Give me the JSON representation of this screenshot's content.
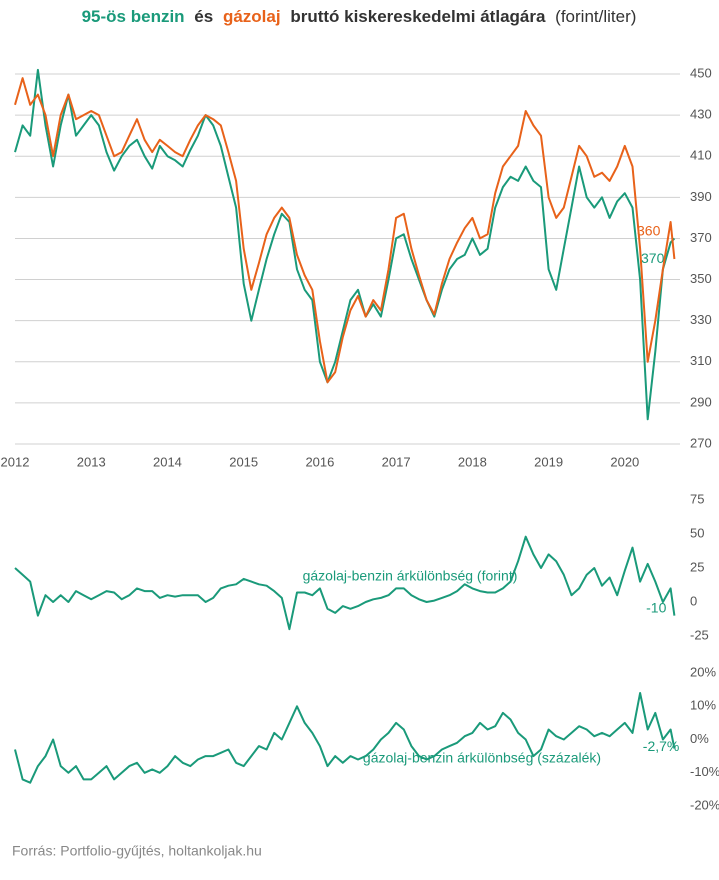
{
  "chart_data": [
    {
      "type": "line",
      "x": [
        2012.0,
        2012.1,
        2012.2,
        2012.3,
        2012.4,
        2012.5,
        2012.6,
        2012.7,
        2012.8,
        2012.9,
        2013.0,
        2013.1,
        2013.2,
        2013.3,
        2013.4,
        2013.5,
        2013.6,
        2013.7,
        2013.8,
        2013.9,
        2014.0,
        2014.1,
        2014.2,
        2014.3,
        2014.4,
        2014.5,
        2014.6,
        2014.7,
        2014.8,
        2014.9,
        2015.0,
        2015.1,
        2015.2,
        2015.3,
        2015.4,
        2015.5,
        2015.6,
        2015.7,
        2015.8,
        2015.9,
        2016.0,
        2016.1,
        2016.2,
        2016.3,
        2016.4,
        2016.5,
        2016.6,
        2016.7,
        2016.8,
        2016.9,
        2017.0,
        2017.1,
        2017.2,
        2017.3,
        2017.4,
        2017.5,
        2017.6,
        2017.7,
        2017.8,
        2017.9,
        2018.0,
        2018.1,
        2018.2,
        2018.3,
        2018.4,
        2018.5,
        2018.6,
        2018.7,
        2018.8,
        2018.9,
        2019.0,
        2019.1,
        2019.2,
        2019.3,
        2019.4,
        2019.5,
        2019.6,
        2019.7,
        2019.8,
        2019.9,
        2020.0,
        2020.1,
        2020.2,
        2020.3,
        2020.4,
        2020.5,
        2020.6,
        2020.65
      ],
      "series": [
        {
          "name": "95-ös benzin",
          "color": "#1a9a7a",
          "end_label": "370",
          "values": [
            412,
            425,
            420,
            452,
            425,
            405,
            425,
            440,
            420,
            425,
            430,
            425,
            412,
            403,
            410,
            415,
            418,
            410,
            404,
            415,
            410,
            408,
            405,
            413,
            420,
            430,
            425,
            415,
            400,
            385,
            348,
            330,
            345,
            360,
            372,
            382,
            378,
            355,
            345,
            340,
            310,
            300,
            310,
            325,
            340,
            345,
            332,
            338,
            332,
            350,
            370,
            372,
            360,
            350,
            340,
            332,
            345,
            355,
            360,
            362,
            370,
            362,
            365,
            385,
            395,
            400,
            398,
            405,
            398,
            395,
            355,
            345,
            365,
            385,
            405,
            390,
            385,
            390,
            380,
            388,
            392,
            385,
            350,
            282,
            315,
            355,
            368,
            370
          ]
        },
        {
          "name": "gázolaj",
          "color": "#e8621a",
          "end_label": "360",
          "values": [
            435,
            448,
            435,
            440,
            430,
            410,
            430,
            440,
            428,
            430,
            432,
            430,
            420,
            410,
            412,
            420,
            428,
            418,
            412,
            418,
            415,
            412,
            410,
            418,
            425,
            430,
            428,
            425,
            412,
            398,
            365,
            345,
            358,
            372,
            380,
            385,
            380,
            362,
            352,
            345,
            320,
            300,
            305,
            322,
            335,
            342,
            332,
            340,
            335,
            355,
            380,
            382,
            365,
            352,
            340,
            333,
            348,
            360,
            368,
            375,
            380,
            370,
            372,
            392,
            405,
            410,
            415,
            432,
            425,
            420,
            390,
            380,
            385,
            400,
            415,
            410,
            400,
            402,
            398,
            405,
            415,
            405,
            365,
            310,
            330,
            355,
            378,
            360
          ]
        }
      ],
      "title_parts": [
        "és",
        "bruttó kiskereskedelmi átlagára",
        "(forint/liter)"
      ],
      "xlim": [
        2012,
        2020.75
      ],
      "xticks": [
        2012,
        2013,
        2014,
        2015,
        2016,
        2017,
        2018,
        2019,
        2020
      ],
      "ylim": [
        270,
        450
      ],
      "yticks": [
        270,
        290,
        310,
        330,
        350,
        370,
        390,
        410,
        430,
        450
      ],
      "grid": true
    },
    {
      "type": "line",
      "x": [
        2012.0,
        2012.1,
        2012.2,
        2012.3,
        2012.4,
        2012.5,
        2012.6,
        2012.7,
        2012.8,
        2012.9,
        2013.0,
        2013.1,
        2013.2,
        2013.3,
        2013.4,
        2013.5,
        2013.6,
        2013.7,
        2013.8,
        2013.9,
        2014.0,
        2014.1,
        2014.2,
        2014.3,
        2014.4,
        2014.5,
        2014.6,
        2014.7,
        2014.8,
        2014.9,
        2015.0,
        2015.1,
        2015.2,
        2015.3,
        2015.4,
        2015.5,
        2015.6,
        2015.7,
        2015.8,
        2015.9,
        2016.0,
        2016.1,
        2016.2,
        2016.3,
        2016.4,
        2016.5,
        2016.6,
        2016.7,
        2016.8,
        2016.9,
        2017.0,
        2017.1,
        2017.2,
        2017.3,
        2017.4,
        2017.5,
        2017.6,
        2017.7,
        2017.8,
        2017.9,
        2018.0,
        2018.1,
        2018.2,
        2018.3,
        2018.4,
        2018.5,
        2018.6,
        2018.7,
        2018.8,
        2018.9,
        2019.0,
        2019.1,
        2019.2,
        2019.3,
        2019.4,
        2019.5,
        2019.6,
        2019.7,
        2019.8,
        2019.9,
        2020.0,
        2020.1,
        2020.2,
        2020.3,
        2020.4,
        2020.5,
        2020.6,
        2020.65
      ],
      "series": [
        {
          "name": "gázolaj-benzin árkülönbség (forint)",
          "color": "#1a9a7a",
          "end_label": "-10",
          "values": [
            25,
            20,
            15,
            -10,
            5,
            0,
            5,
            0,
            8,
            5,
            2,
            5,
            8,
            7,
            2,
            5,
            10,
            8,
            8,
            3,
            5,
            4,
            5,
            5,
            5,
            0,
            3,
            10,
            12,
            13,
            17,
            15,
            13,
            12,
            8,
            3,
            -20,
            7,
            7,
            5,
            10,
            -5,
            -8,
            -3,
            -5,
            -3,
            0,
            2,
            3,
            5,
            10,
            10,
            5,
            2,
            0,
            1,
            3,
            5,
            8,
            13,
            10,
            8,
            7,
            7,
            10,
            15,
            30,
            48,
            35,
            25,
            35,
            30,
            20,
            5,
            10,
            20,
            25,
            12,
            18,
            5,
            23,
            40,
            15,
            28,
            15,
            0,
            10,
            -10
          ]
        }
      ],
      "xlim": [
        2012,
        2020.75
      ],
      "ylim": [
        -25,
        75
      ],
      "yticks": [
        -25,
        0,
        25,
        50,
        75
      ],
      "grid": false
    },
    {
      "type": "line",
      "x": [
        2012.0,
        2012.1,
        2012.2,
        2012.3,
        2012.4,
        2012.5,
        2012.6,
        2012.7,
        2012.8,
        2012.9,
        2013.0,
        2013.1,
        2013.2,
        2013.3,
        2013.4,
        2013.5,
        2013.6,
        2013.7,
        2013.8,
        2013.9,
        2014.0,
        2014.1,
        2014.2,
        2014.3,
        2014.4,
        2014.5,
        2014.6,
        2014.7,
        2014.8,
        2014.9,
        2015.0,
        2015.1,
        2015.2,
        2015.3,
        2015.4,
        2015.5,
        2015.6,
        2015.7,
        2015.8,
        2015.9,
        2016.0,
        2016.1,
        2016.2,
        2016.3,
        2016.4,
        2016.5,
        2016.6,
        2016.7,
        2016.8,
        2016.9,
        2017.0,
        2017.1,
        2017.2,
        2017.3,
        2017.4,
        2017.5,
        2017.6,
        2017.7,
        2017.8,
        2017.9,
        2018.0,
        2018.1,
        2018.2,
        2018.3,
        2018.4,
        2018.5,
        2018.6,
        2018.7,
        2018.8,
        2018.9,
        2019.0,
        2019.1,
        2019.2,
        2019.3,
        2019.4,
        2019.5,
        2019.6,
        2019.7,
        2019.8,
        2019.9,
        2020.0,
        2020.1,
        2020.2,
        2020.3,
        2020.4,
        2020.5,
        2020.6,
        2020.65
      ],
      "series": [
        {
          "name": "gázolaj-benzin árkülönbség (százalék)",
          "color": "#1a9a7a",
          "end_label": "-2,7%",
          "values": [
            -3,
            -12,
            -13,
            -8,
            -5,
            0,
            -8,
            -10,
            -8,
            -12,
            -12,
            -10,
            -8,
            -12,
            -10,
            -8,
            -7,
            -10,
            -9,
            -10,
            -8,
            -5,
            -7,
            -8,
            -6,
            -5,
            -5,
            -4,
            -3,
            -7,
            -8,
            -5,
            -2,
            -3,
            2,
            0,
            5,
            10,
            5,
            2,
            -2,
            -8,
            -5,
            -7,
            -5,
            -6,
            -5,
            -3,
            0,
            2,
            5,
            3,
            -2,
            -5,
            -6,
            -5,
            -3,
            -2,
            -1,
            1,
            2,
            5,
            3,
            4,
            8,
            6,
            2,
            0,
            -5,
            -3,
            3,
            1,
            0,
            2,
            4,
            3,
            1,
            2,
            1,
            3,
            5,
            2,
            14,
            3,
            8,
            0,
            3,
            -2.7
          ]
        }
      ],
      "xlim": [
        2012,
        2020.75
      ],
      "ylim": [
        -20,
        20
      ],
      "yticks": [
        {
          "value": -20,
          "label": "-20%"
        },
        {
          "value": -10,
          "label": "-10%"
        },
        {
          "value": 0,
          "label": "0%"
        },
        {
          "value": 10,
          "label": "10%"
        },
        {
          "value": 20,
          "label": "20%"
        }
      ],
      "grid": false
    }
  ],
  "source": "Forrás: Portfolio-gyűjtés, holtankoljak.hu"
}
